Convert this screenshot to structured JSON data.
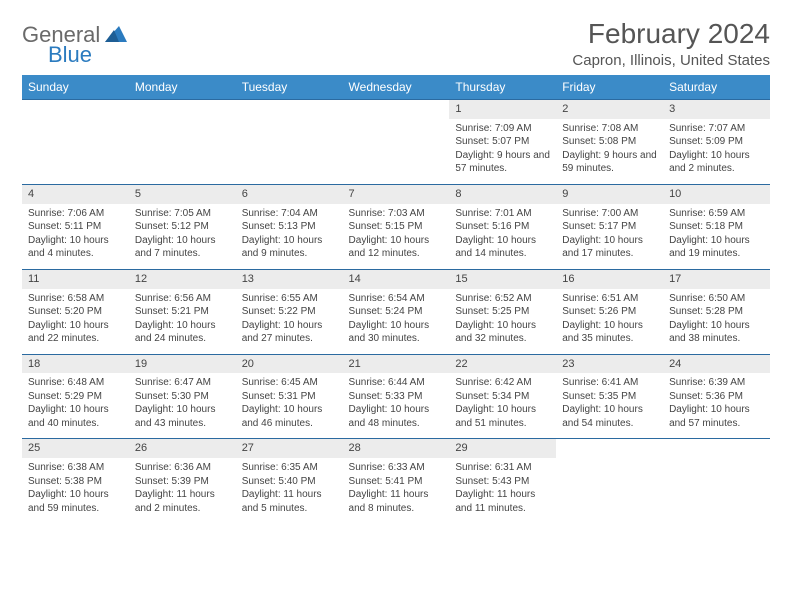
{
  "logo": {
    "word1": "General",
    "word2": "Blue"
  },
  "title": "February 2024",
  "location": "Capron, Illinois, United States",
  "colors": {
    "header_bg": "#3b8bc8",
    "header_text": "#ffffff",
    "daynum_bg": "#ececec",
    "border": "#2b6aa0",
    "text": "#444444",
    "logo_gray": "#6a6a6a",
    "logo_blue": "#2b7bbf"
  },
  "weekdays": [
    "Sunday",
    "Monday",
    "Tuesday",
    "Wednesday",
    "Thursday",
    "Friday",
    "Saturday"
  ],
  "weeks": [
    [
      null,
      null,
      null,
      null,
      {
        "n": "1",
        "sr": "7:09 AM",
        "ss": "5:07 PM",
        "dl": "9 hours and 57 minutes."
      },
      {
        "n": "2",
        "sr": "7:08 AM",
        "ss": "5:08 PM",
        "dl": "9 hours and 59 minutes."
      },
      {
        "n": "3",
        "sr": "7:07 AM",
        "ss": "5:09 PM",
        "dl": "10 hours and 2 minutes."
      }
    ],
    [
      {
        "n": "4",
        "sr": "7:06 AM",
        "ss": "5:11 PM",
        "dl": "10 hours and 4 minutes."
      },
      {
        "n": "5",
        "sr": "7:05 AM",
        "ss": "5:12 PM",
        "dl": "10 hours and 7 minutes."
      },
      {
        "n": "6",
        "sr": "7:04 AM",
        "ss": "5:13 PM",
        "dl": "10 hours and 9 minutes."
      },
      {
        "n": "7",
        "sr": "7:03 AM",
        "ss": "5:15 PM",
        "dl": "10 hours and 12 minutes."
      },
      {
        "n": "8",
        "sr": "7:01 AM",
        "ss": "5:16 PM",
        "dl": "10 hours and 14 minutes."
      },
      {
        "n": "9",
        "sr": "7:00 AM",
        "ss": "5:17 PM",
        "dl": "10 hours and 17 minutes."
      },
      {
        "n": "10",
        "sr": "6:59 AM",
        "ss": "5:18 PM",
        "dl": "10 hours and 19 minutes."
      }
    ],
    [
      {
        "n": "11",
        "sr": "6:58 AM",
        "ss": "5:20 PM",
        "dl": "10 hours and 22 minutes."
      },
      {
        "n": "12",
        "sr": "6:56 AM",
        "ss": "5:21 PM",
        "dl": "10 hours and 24 minutes."
      },
      {
        "n": "13",
        "sr": "6:55 AM",
        "ss": "5:22 PM",
        "dl": "10 hours and 27 minutes."
      },
      {
        "n": "14",
        "sr": "6:54 AM",
        "ss": "5:24 PM",
        "dl": "10 hours and 30 minutes."
      },
      {
        "n": "15",
        "sr": "6:52 AM",
        "ss": "5:25 PM",
        "dl": "10 hours and 32 minutes."
      },
      {
        "n": "16",
        "sr": "6:51 AM",
        "ss": "5:26 PM",
        "dl": "10 hours and 35 minutes."
      },
      {
        "n": "17",
        "sr": "6:50 AM",
        "ss": "5:28 PM",
        "dl": "10 hours and 38 minutes."
      }
    ],
    [
      {
        "n": "18",
        "sr": "6:48 AM",
        "ss": "5:29 PM",
        "dl": "10 hours and 40 minutes."
      },
      {
        "n": "19",
        "sr": "6:47 AM",
        "ss": "5:30 PM",
        "dl": "10 hours and 43 minutes."
      },
      {
        "n": "20",
        "sr": "6:45 AM",
        "ss": "5:31 PM",
        "dl": "10 hours and 46 minutes."
      },
      {
        "n": "21",
        "sr": "6:44 AM",
        "ss": "5:33 PM",
        "dl": "10 hours and 48 minutes."
      },
      {
        "n": "22",
        "sr": "6:42 AM",
        "ss": "5:34 PM",
        "dl": "10 hours and 51 minutes."
      },
      {
        "n": "23",
        "sr": "6:41 AM",
        "ss": "5:35 PM",
        "dl": "10 hours and 54 minutes."
      },
      {
        "n": "24",
        "sr": "6:39 AM",
        "ss": "5:36 PM",
        "dl": "10 hours and 57 minutes."
      }
    ],
    [
      {
        "n": "25",
        "sr": "6:38 AM",
        "ss": "5:38 PM",
        "dl": "10 hours and 59 minutes."
      },
      {
        "n": "26",
        "sr": "6:36 AM",
        "ss": "5:39 PM",
        "dl": "11 hours and 2 minutes."
      },
      {
        "n": "27",
        "sr": "6:35 AM",
        "ss": "5:40 PM",
        "dl": "11 hours and 5 minutes."
      },
      {
        "n": "28",
        "sr": "6:33 AM",
        "ss": "5:41 PM",
        "dl": "11 hours and 8 minutes."
      },
      {
        "n": "29",
        "sr": "6:31 AM",
        "ss": "5:43 PM",
        "dl": "11 hours and 11 minutes."
      },
      null,
      null
    ]
  ],
  "labels": {
    "sunrise": "Sunrise: ",
    "sunset": "Sunset: ",
    "daylight": "Daylight: "
  }
}
